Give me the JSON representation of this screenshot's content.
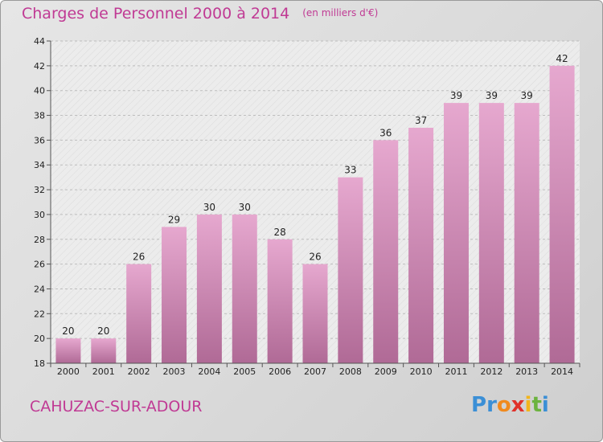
{
  "title": "Charges de Personnel 2000 à 2014",
  "subtitle": "(en milliers d'€)",
  "commune": "CAHUZAC-SUR-ADOUR",
  "logo": {
    "text": "Proxiti",
    "letters": [
      "P",
      "r",
      "o",
      "x",
      "i",
      "t",
      "i"
    ],
    "colors": [
      "#3b8fd6",
      "#3b8fd6",
      "#f08a1e",
      "#e0312a",
      "#f3b51b",
      "#6cb33f",
      "#3b8fd6"
    ]
  },
  "colors": {
    "bar_top": "#e6a8cf",
    "bar_bottom": "#b06a96",
    "text_accent": "#c03a94"
  },
  "chart_data": {
    "type": "bar",
    "categories": [
      "2000",
      "2001",
      "2002",
      "2003",
      "2004",
      "2005",
      "2006",
      "2007",
      "2008",
      "2009",
      "2010",
      "2011",
      "2012",
      "2013",
      "2014"
    ],
    "values": [
      20,
      20,
      26,
      29,
      30,
      30,
      28,
      26,
      33,
      36,
      37,
      39,
      39,
      39,
      42
    ],
    "yticks": [
      18,
      20,
      22,
      24,
      26,
      28,
      30,
      32,
      34,
      36,
      38,
      40,
      42,
      44
    ],
    "ylim": [
      18,
      44
    ],
    "grid": true,
    "data_labels": true
  }
}
